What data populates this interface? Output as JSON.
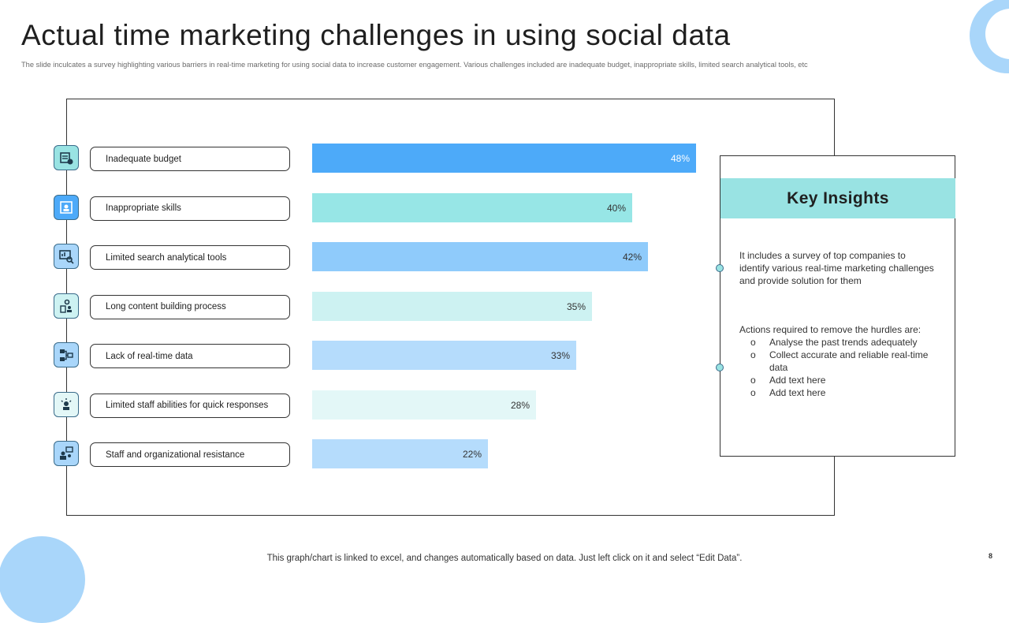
{
  "title": "Actual time marketing challenges in using social data",
  "subtitle": "The slide inculcates a survey highlighting various barriers in real-time marketing  for using social data to increase customer engagement. Various challenges included are inadequate budget, inappropriate skills, limited  search analytical tools, etc",
  "chart_data": {
    "type": "bar",
    "orientation": "horizontal",
    "categories": [
      "Inadequate budget",
      "Inappropriate skills",
      "Limited search analytical tools",
      "Long content building process",
      "Lack of real-time data",
      "Limited staff abilities for quick responses",
      "Staff and organizational resistance"
    ],
    "values": [
      48,
      40,
      42,
      35,
      33,
      28,
      22
    ],
    "value_labels": [
      "48%",
      "40%",
      "42%",
      "35%",
      "33%",
      "28%",
      "22%"
    ],
    "bar_colors": [
      "#4daaf9",
      "#97e6e6",
      "#8fcbfb",
      "#cdf2f2",
      "#b5dcfc",
      "#e3f7f7",
      "#b5dcfc"
    ],
    "label_colors": [
      "#ffffff",
      "#333333",
      "#333333",
      "#333333",
      "#333333",
      "#333333",
      "#333333"
    ],
    "xlim": [
      0,
      48
    ],
    "grid": false,
    "legend": "none"
  },
  "row_icons": [
    {
      "name": "budget-icon",
      "bg": "#99e3e3"
    },
    {
      "name": "skills-icon",
      "bg": "#4daaf9"
    },
    {
      "name": "analytics-icon",
      "bg": "#a9d6fa"
    },
    {
      "name": "content-process-icon",
      "bg": "#cdf2f2"
    },
    {
      "name": "data-flow-icon",
      "bg": "#a9d6fa"
    },
    {
      "name": "staff-icon",
      "bg": "#e3f7f7"
    },
    {
      "name": "organization-icon",
      "bg": "#a9d6fa"
    }
  ],
  "insights": {
    "heading": "Key Insights",
    "para1": "It includes a survey  of top companies to identify various  real-time  marketing challenges and provide  solution for them",
    "para2": "Actions required to remove  the hurdles are:",
    "items": [
      "Analyse the past trends adequately",
      "Collect accurate and reliable real-time data",
      "Add text here",
      "Add text here"
    ]
  },
  "footer": "This graph/chart is linked to excel,  and changes automatically based on data. Just left click on it and select “Edit Data”.",
  "page_number": "8"
}
